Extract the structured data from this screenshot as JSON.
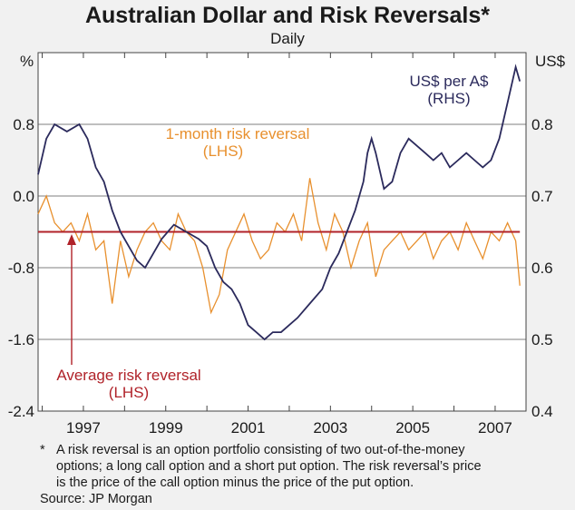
{
  "chart_data": {
    "type": "line",
    "title": "Australian Dollar and Risk Reversals*",
    "subtitle": "Daily",
    "left_axis": {
      "unit": "%",
      "ylim": [
        -2.4,
        1.6
      ],
      "ticks": [
        "0.8",
        "0.0",
        "-0.8",
        "-1.6",
        "-2.4"
      ],
      "tick_values": [
        0.8,
        0.0,
        -0.8,
        -1.6,
        -2.4
      ]
    },
    "right_axis": {
      "unit": "US$",
      "ylim": [
        0.4,
        0.9
      ],
      "ticks": [
        "0.8",
        "0.7",
        "0.6",
        "0.5",
        "0.4"
      ],
      "tick_values": [
        0.8,
        0.7,
        0.6,
        0.5,
        0.4
      ]
    },
    "x_axis": {
      "xlim": [
        1995.9,
        2007.75
      ],
      "ticks": [
        "1997",
        "1999",
        "2001",
        "2003",
        "2005",
        "2007"
      ],
      "tick_values": [
        1997,
        1999,
        2001,
        2003,
        2005,
        2007
      ]
    },
    "grid": true,
    "series": [
      {
        "name": "1-month risk reversal",
        "axis": "left",
        "color": "#e8902e",
        "x": [
          1995.9,
          1996.1,
          1996.3,
          1996.5,
          1996.7,
          1996.9,
          1997.1,
          1997.3,
          1997.5,
          1997.7,
          1997.9,
          1998.1,
          1998.3,
          1998.5,
          1998.7,
          1998.9,
          1999.1,
          1999.3,
          1999.5,
          1999.7,
          1999.9,
          2000.1,
          2000.3,
          2000.5,
          2000.7,
          2000.9,
          2001.1,
          2001.3,
          2001.5,
          2001.7,
          2001.9,
          2002.1,
          2002.3,
          2002.5,
          2002.7,
          2002.9,
          2003.1,
          2003.3,
          2003.5,
          2003.7,
          2003.9,
          2004.1,
          2004.3,
          2004.5,
          2004.7,
          2004.9,
          2005.1,
          2005.3,
          2005.5,
          2005.7,
          2005.9,
          2006.1,
          2006.3,
          2006.5,
          2006.7,
          2006.9,
          2007.1,
          2007.3,
          2007.5,
          2007.6
        ],
        "values": [
          -0.2,
          0.0,
          -0.3,
          -0.4,
          -0.3,
          -0.5,
          -0.2,
          -0.6,
          -0.5,
          -1.2,
          -0.5,
          -0.9,
          -0.6,
          -0.4,
          -0.3,
          -0.5,
          -0.6,
          -0.2,
          -0.4,
          -0.5,
          -0.8,
          -1.3,
          -1.1,
          -0.6,
          -0.4,
          -0.2,
          -0.5,
          -0.7,
          -0.6,
          -0.3,
          -0.4,
          -0.2,
          -0.5,
          0.2,
          -0.3,
          -0.6,
          -0.2,
          -0.4,
          -0.8,
          -0.5,
          -0.3,
          -0.9,
          -0.6,
          -0.5,
          -0.4,
          -0.6,
          -0.5,
          -0.4,
          -0.7,
          -0.5,
          -0.4,
          -0.6,
          -0.3,
          -0.5,
          -0.7,
          -0.4,
          -0.5,
          -0.3,
          -0.5,
          -1.0
        ]
      },
      {
        "name": "US$ per A$",
        "axis": "right",
        "color": "#2b2a5c",
        "x": [
          1995.9,
          1996.1,
          1996.3,
          1996.6,
          1996.9,
          1997.1,
          1997.3,
          1997.5,
          1997.7,
          1997.9,
          1998.1,
          1998.3,
          1998.5,
          1998.7,
          1998.9,
          1999.2,
          1999.5,
          1999.8,
          2000.0,
          2000.2,
          2000.4,
          2000.6,
          2000.8,
          2001.0,
          2001.2,
          2001.4,
          2001.6,
          2001.8,
          2002.0,
          2002.2,
          2002.5,
          2002.8,
          2003.0,
          2003.2,
          2003.4,
          2003.6,
          2003.8,
          2003.9,
          2004.0,
          2004.1,
          2004.3,
          2004.5,
          2004.7,
          2004.9,
          2005.1,
          2005.3,
          2005.5,
          2005.7,
          2005.9,
          2006.1,
          2006.3,
          2006.5,
          2006.7,
          2006.9,
          2007.1,
          2007.3,
          2007.5,
          2007.6
        ],
        "values": [
          0.73,
          0.78,
          0.8,
          0.79,
          0.8,
          0.78,
          0.74,
          0.72,
          0.68,
          0.65,
          0.63,
          0.61,
          0.6,
          0.62,
          0.64,
          0.66,
          0.65,
          0.64,
          0.63,
          0.6,
          0.58,
          0.57,
          0.55,
          0.52,
          0.51,
          0.5,
          0.51,
          0.51,
          0.52,
          0.53,
          0.55,
          0.57,
          0.6,
          0.62,
          0.65,
          0.68,
          0.72,
          0.76,
          0.78,
          0.76,
          0.71,
          0.72,
          0.76,
          0.78,
          0.77,
          0.76,
          0.75,
          0.76,
          0.74,
          0.75,
          0.76,
          0.75,
          0.74,
          0.75,
          0.78,
          0.83,
          0.88,
          0.86
        ]
      },
      {
        "name": "Average risk reversal",
        "axis": "left",
        "color": "#b02229",
        "x": [
          1995.9,
          2007.6
        ],
        "values": [
          -0.4,
          -0.4
        ]
      }
    ],
    "annotations": {
      "risk_reversal_label": [
        "1-month risk reversal",
        "(LHS)"
      ],
      "usd_label": [
        "US$ per A$",
        "(RHS)"
      ],
      "average_label": [
        "Average risk reversal",
        "(LHS)"
      ]
    },
    "footnote": [
      "*",
      "A risk reversal is an option portfolio consisting of two out-of-the-money",
      "options; a long call option and a short put option. The risk reversal’s price",
      "is the price of the call option minus the price of the put option."
    ],
    "source": "Source: JP Morgan"
  }
}
